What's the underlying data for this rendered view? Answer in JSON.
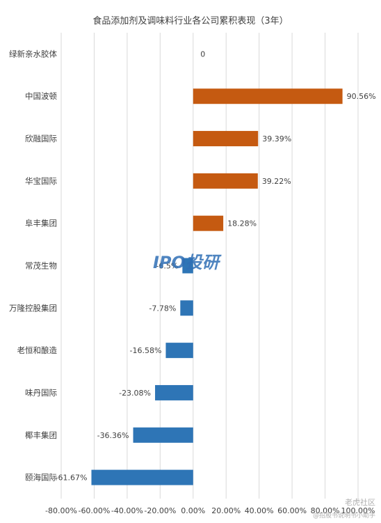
{
  "chart_data": {
    "type": "bar",
    "orientation": "horizontal",
    "title": "食品添加剂及调味料行业各公司累积表现（3年）",
    "categories": [
      "绿新亲水胶体",
      "中国波顿",
      "欣融国际",
      "华宝国际",
      "阜丰集团",
      "常茂生物",
      "万隆控股集团",
      "老恒和酿造",
      "味丹国际",
      "椰丰集团",
      "颐海国际"
    ],
    "values": [
      0,
      90.56,
      39.39,
      39.22,
      18.28,
      -6.5,
      -7.78,
      -16.58,
      -23.08,
      -36.36,
      -61.67
    ],
    "labels": [
      "0",
      "90.56%",
      "39.39%",
      "39.22%",
      "18.28%",
      "-6.5%",
      "-7.78%",
      "-16.58%",
      "-23.08%",
      "-36.36%",
      "-61.67%"
    ],
    "xlim": [
      -80,
      100
    ],
    "xticks": [
      -80,
      -60,
      -40,
      -20,
      0,
      20,
      40,
      60,
      80,
      100
    ],
    "xtick_labels": [
      "-80.00%",
      "-60.00%",
      "-40.00%",
      "-20.00%",
      "0.00%",
      "20.00%",
      "40.00%",
      "60.00%",
      "80.00%",
      "100.00%"
    ],
    "grid": "vertical",
    "colors": {
      "positive": "#c55a11",
      "negative": "#2e75b6"
    }
  },
  "watermark": {
    "logo": "IPO投研",
    "site": "老虎社区",
    "note": "@招股书说明书小助手"
  }
}
